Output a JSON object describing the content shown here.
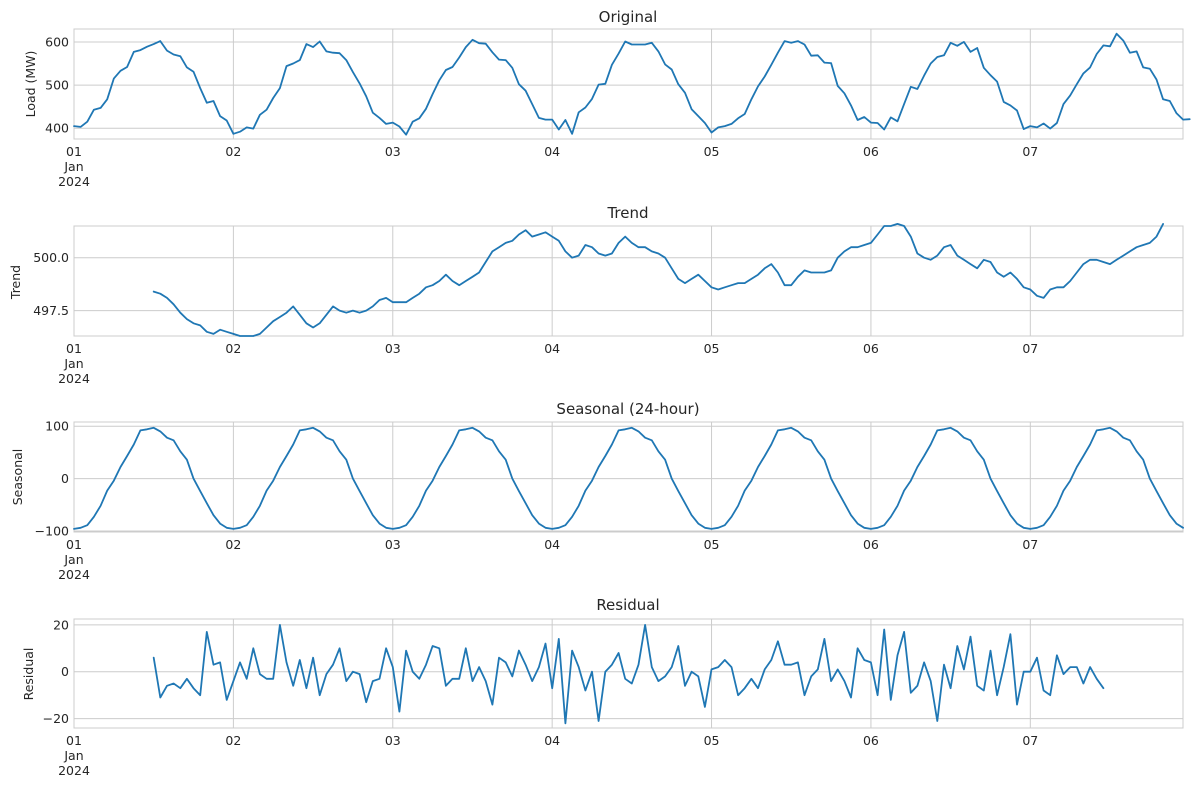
{
  "colors": {
    "line": "#1f77b4",
    "grid": "#cccccc",
    "text": "#262626",
    "background": "#ffffff"
  },
  "chart_data": [
    {
      "type": "line",
      "title": "Original",
      "xlabel": "",
      "ylabel": "Load (MW)",
      "x_tick_labels": [
        "01\nJan\n2024",
        "02",
        "03",
        "04",
        "05",
        "06",
        "07"
      ],
      "x_range_days": [
        0,
        6.958
      ],
      "ylim": [
        375,
        630
      ],
      "y_ticks": [
        400,
        500,
        600
      ],
      "y_tick_labels": [
        "400",
        "500",
        "600"
      ],
      "grid": true,
      "x_start_day": 0,
      "step_hours": 1,
      "values": [
        405,
        403,
        415,
        443,
        447,
        467,
        515,
        533,
        542,
        577,
        581,
        589,
        595,
        602,
        580,
        571,
        567,
        541,
        531,
        493,
        459,
        463,
        428,
        418,
        387,
        392,
        402,
        399,
        431,
        443,
        470,
        493,
        544,
        550,
        558,
        595,
        588,
        601,
        578,
        575,
        574,
        558,
        530,
        504,
        474,
        436,
        424,
        410,
        413,
        404,
        385,
        415,
        423,
        445,
        479,
        511,
        535,
        542,
        564,
        588,
        605,
        597,
        596,
        576,
        559,
        558,
        540,
        502,
        487,
        456,
        424,
        420,
        420,
        397,
        419,
        387,
        437,
        448,
        468,
        501,
        503,
        547,
        573,
        601,
        594,
        594,
        594,
        598,
        578,
        548,
        536,
        502,
        482,
        444,
        428,
        412,
        390,
        402,
        405,
        410,
        423,
        433,
        467,
        497,
        520,
        547,
        575,
        602,
        598,
        602,
        594,
        568,
        569,
        552,
        551,
        498,
        481,
        453,
        419,
        426,
        413,
        412,
        397,
        425,
        416,
        456,
        496,
        491,
        522,
        550,
        565,
        569,
        598,
        591,
        600,
        577,
        586,
        540,
        523,
        508,
        461,
        453,
        441,
        398,
        405,
        402,
        411,
        399,
        412,
        456,
        476,
        502,
        527,
        541,
        572,
        592,
        590,
        619,
        603,
        575,
        578,
        541,
        538,
        513,
        467,
        463,
        435,
        420,
        421
      ]
    },
    {
      "type": "line",
      "title": "Trend",
      "xlabel": "",
      "ylabel": "Trend",
      "x_tick_labels": [
        "01\nJan\n2024",
        "02",
        "03",
        "04",
        "05",
        "06",
        "07"
      ],
      "x_range_days": [
        0,
        6.958
      ],
      "ylim": [
        496.3,
        501.5
      ],
      "y_ticks": [
        497.5,
        500.0
      ],
      "y_tick_labels": [
        "497.5",
        "500.0"
      ],
      "grid": true,
      "x_start_day": 0.5,
      "step_hours": 1,
      "values": [
        498.4,
        498.3,
        498.1,
        497.8,
        497.4,
        497.1,
        496.9,
        496.8,
        496.5,
        496.4,
        496.6,
        496.5,
        496.4,
        496.3,
        496.3,
        496.3,
        496.4,
        496.7,
        497.0,
        497.2,
        497.4,
        497.7,
        497.3,
        496.9,
        496.7,
        496.9,
        497.3,
        497.7,
        497.5,
        497.4,
        497.5,
        497.4,
        497.5,
        497.7,
        498.0,
        498.1,
        497.9,
        497.9,
        497.9,
        498.1,
        498.3,
        498.6,
        498.7,
        498.9,
        499.2,
        498.9,
        498.7,
        498.9,
        499.1,
        499.3,
        499.8,
        500.3,
        500.5,
        500.7,
        500.8,
        501.1,
        501.3,
        501.0,
        501.1,
        501.2,
        501.0,
        500.8,
        500.3,
        500.0,
        500.1,
        500.6,
        500.5,
        500.2,
        500.1,
        500.2,
        500.7,
        501.0,
        500.7,
        500.5,
        500.5,
        500.3,
        500.2,
        500.0,
        499.5,
        499.0,
        498.8,
        499.0,
        499.2,
        498.9,
        498.6,
        498.5,
        498.6,
        498.7,
        498.8,
        498.8,
        499.0,
        499.2,
        499.5,
        499.7,
        499.3,
        498.7,
        498.7,
        499.1,
        499.4,
        499.3,
        499.3,
        499.3,
        499.4,
        500.0,
        500.3,
        500.5,
        500.5,
        500.6,
        500.7,
        501.1,
        501.5,
        501.5,
        501.6,
        501.5,
        501.0,
        500.2,
        500.0,
        499.9,
        500.1,
        500.5,
        500.6,
        500.1,
        499.9,
        499.7,
        499.5,
        499.9,
        499.8,
        499.3,
        499.1,
        499.3,
        499.0,
        498.6,
        498.5,
        498.2,
        498.1,
        498.5,
        498.6,
        498.6,
        498.9,
        499.3,
        499.7,
        499.9,
        499.9,
        499.8,
        499.7,
        499.9,
        500.1,
        500.3,
        500.5,
        500.6,
        500.7,
        501.0,
        501.6
      ]
    },
    {
      "type": "line",
      "title": "Seasonal (24-hour)",
      "xlabel": "",
      "ylabel": "Seasonal",
      "x_tick_labels": [
        "01\nJan\n2024",
        "02",
        "03",
        "04",
        "05",
        "06",
        "07"
      ],
      "x_range_days": [
        0,
        6.958
      ],
      "ylim": [
        -102,
        108
      ],
      "y_ticks": [
        -100,
        0,
        100
      ],
      "y_tick_labels": [
        "−100",
        "0",
        "100"
      ],
      "grid": true,
      "x_start_day": 0,
      "step_hours": 1,
      "pattern_repeats_days": 7,
      "pattern_24h": [
        -96,
        -94,
        -89,
        -73,
        -52,
        -23,
        -4,
        22,
        43,
        65,
        92,
        94,
        97,
        90,
        78,
        73,
        52,
        36,
        0,
        -24,
        -47,
        -70,
        -86,
        -94
      ]
    },
    {
      "type": "line",
      "title": "Residual",
      "xlabel": "",
      "ylabel": "Residual",
      "x_tick_labels": [
        "01\nJan\n2024",
        "02",
        "03",
        "04",
        "05",
        "06",
        "07"
      ],
      "x_range_days": [
        0,
        6.958
      ],
      "ylim": [
        -24,
        22.5
      ],
      "y_ticks": [
        -20,
        0,
        20
      ],
      "y_tick_labels": [
        "−20",
        "0",
        "20"
      ],
      "grid": true,
      "x_start_day": 0.5,
      "step_hours": 1,
      "values": [
        6,
        -11,
        -6,
        -5,
        -7,
        -3,
        -7,
        -10,
        17,
        3,
        4,
        -12,
        -4,
        4,
        -3,
        10,
        -1,
        -3,
        -3,
        20,
        4,
        -6,
        5,
        -7,
        6,
        -10,
        -1,
        3,
        10,
        -4,
        0,
        -1,
        -13,
        -4,
        -3,
        10,
        2,
        -17,
        9,
        0,
        -3,
        3,
        11,
        10,
        -6,
        -3,
        -3,
        10,
        -4,
        2,
        -4,
        -14,
        6,
        4,
        -2,
        9,
        3,
        -4,
        2,
        12,
        -7,
        14,
        -22,
        9,
        2,
        -8,
        0,
        -21,
        0,
        3,
        8,
        -3,
        -5,
        3,
        20,
        2,
        -4,
        -2,
        2,
        11,
        -6,
        0,
        -2,
        -15,
        1,
        2,
        5,
        2,
        -10,
        -7,
        -3,
        -7,
        1,
        5,
        13,
        3,
        3,
        4,
        -10,
        -2,
        1,
        14,
        -4,
        1,
        -4,
        -11,
        10,
        5,
        4,
        -10,
        18,
        -12,
        7,
        17,
        -9,
        -6,
        4,
        -4,
        -21,
        3,
        -7,
        11,
        1,
        15,
        -6,
        -8,
        9,
        -10,
        2,
        16,
        -14,
        0,
        0,
        6,
        -8,
        -10,
        7,
        -1,
        2,
        2,
        -5,
        2,
        -3,
        -7
      ]
    }
  ]
}
